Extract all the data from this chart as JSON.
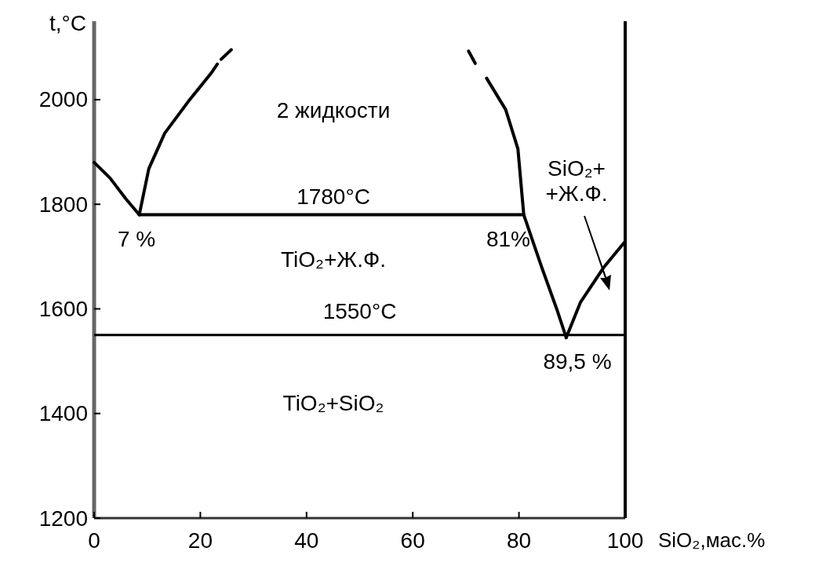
{
  "chart_data": {
    "type": "line",
    "xlabel": "SiO₂,мас.%",
    "ylabel": "t,°C",
    "xlim": [
      0,
      100
    ],
    "ylim": [
      1200,
      2150
    ],
    "xticks": [
      0,
      20,
      40,
      60,
      80,
      100
    ],
    "yticks": [
      1200,
      1400,
      1600,
      1800,
      2000
    ],
    "series": [
      {
        "color": "#000000",
        "x": [
          0,
          3,
          6,
          8.5
        ],
        "values": [
          1880,
          1850,
          1810,
          1780
        ]
      },
      {
        "color": "#000000",
        "x": [
          8.5,
          10.3,
          13.3,
          17.7,
          22.2,
          23.2
        ],
        "values": [
          1780,
          1868,
          1936,
          1996,
          2053,
          2068
        ]
      },
      {
        "color": "#000000",
        "x": [
          23.9,
          26.1
        ],
        "values": [
          2077,
          2098
        ],
        "line_style": "dashed"
      },
      {
        "color": "#000000",
        "x": [
          70.5,
          72.1
        ],
        "values": [
          2093,
          2063
        ],
        "line_style": "dashed"
      },
      {
        "color": "#000000",
        "x": [
          73.9,
          77.5,
          79.8,
          80.9,
          84.2,
          87.1,
          88.9
        ],
        "values": [
          2041,
          1981,
          1906,
          1780,
          1682,
          1600,
          1545
        ]
      },
      {
        "color": "#000000",
        "x": [
          88.9,
          91.6,
          96,
          100
        ],
        "values": [
          1545,
          1613,
          1680,
          1729
        ]
      },
      {
        "color": "#000000",
        "x": [
          8.5,
          80.9
        ],
        "values": [
          1780,
          1780
        ]
      }
    ],
    "ref_lines": [
      {
        "axis": "y",
        "value": 1550,
        "label": "1550°C",
        "color": "#000000"
      },
      {
        "axis": "x",
        "value": 100,
        "color": "#000000"
      }
    ],
    "annotations": [
      "2 жидкости",
      "1780°C",
      "7 %",
      "81%",
      "TiO₂+Ж.Ф.",
      "89,5 %",
      "TiO₂+SiO₂",
      "SiO₂+\n+Ж.Ф."
    ]
  }
}
